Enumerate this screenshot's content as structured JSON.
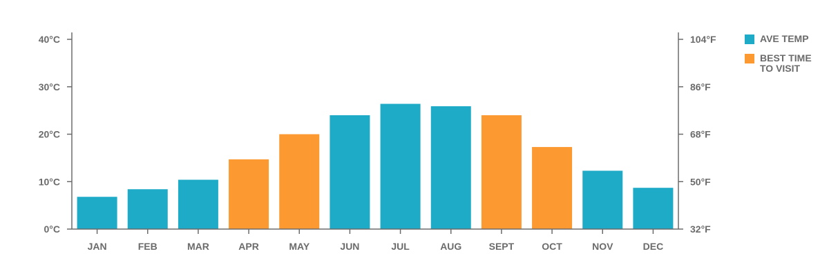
{
  "chart_data": {
    "type": "bar",
    "categories": [
      "JAN",
      "FEB",
      "MAR",
      "APR",
      "MAY",
      "JUN",
      "JUL",
      "AUG",
      "SEPT",
      "OCT",
      "NOV",
      "DEC"
    ],
    "values": [
      6.8,
      8.4,
      10.4,
      14.7,
      20.0,
      24.0,
      26.4,
      25.9,
      24.0,
      17.3,
      12.3,
      8.7
    ],
    "highlight": [
      false,
      false,
      false,
      true,
      true,
      false,
      false,
      false,
      true,
      true,
      false,
      false
    ],
    "ylim": [
      0,
      40
    ],
    "left_ticks": [
      "0°C",
      "10°C",
      "20°C",
      "30°C",
      "40°C"
    ],
    "right_ticks": [
      "32°F",
      "50°F",
      "68°F",
      "86°F",
      "104°F"
    ],
    "legend": [
      {
        "label": "AVE TEMP",
        "color": "#1dabc7"
      },
      {
        "label": "BEST TIME TO VISIT",
        "color": "#fc9930"
      }
    ],
    "legend_position": "right",
    "grid": false,
    "xlabel": "",
    "ylabel": "",
    "colors": {
      "ave": "#1dabc7",
      "best": "#fc9930",
      "axis": "#6b6b6b"
    }
  }
}
